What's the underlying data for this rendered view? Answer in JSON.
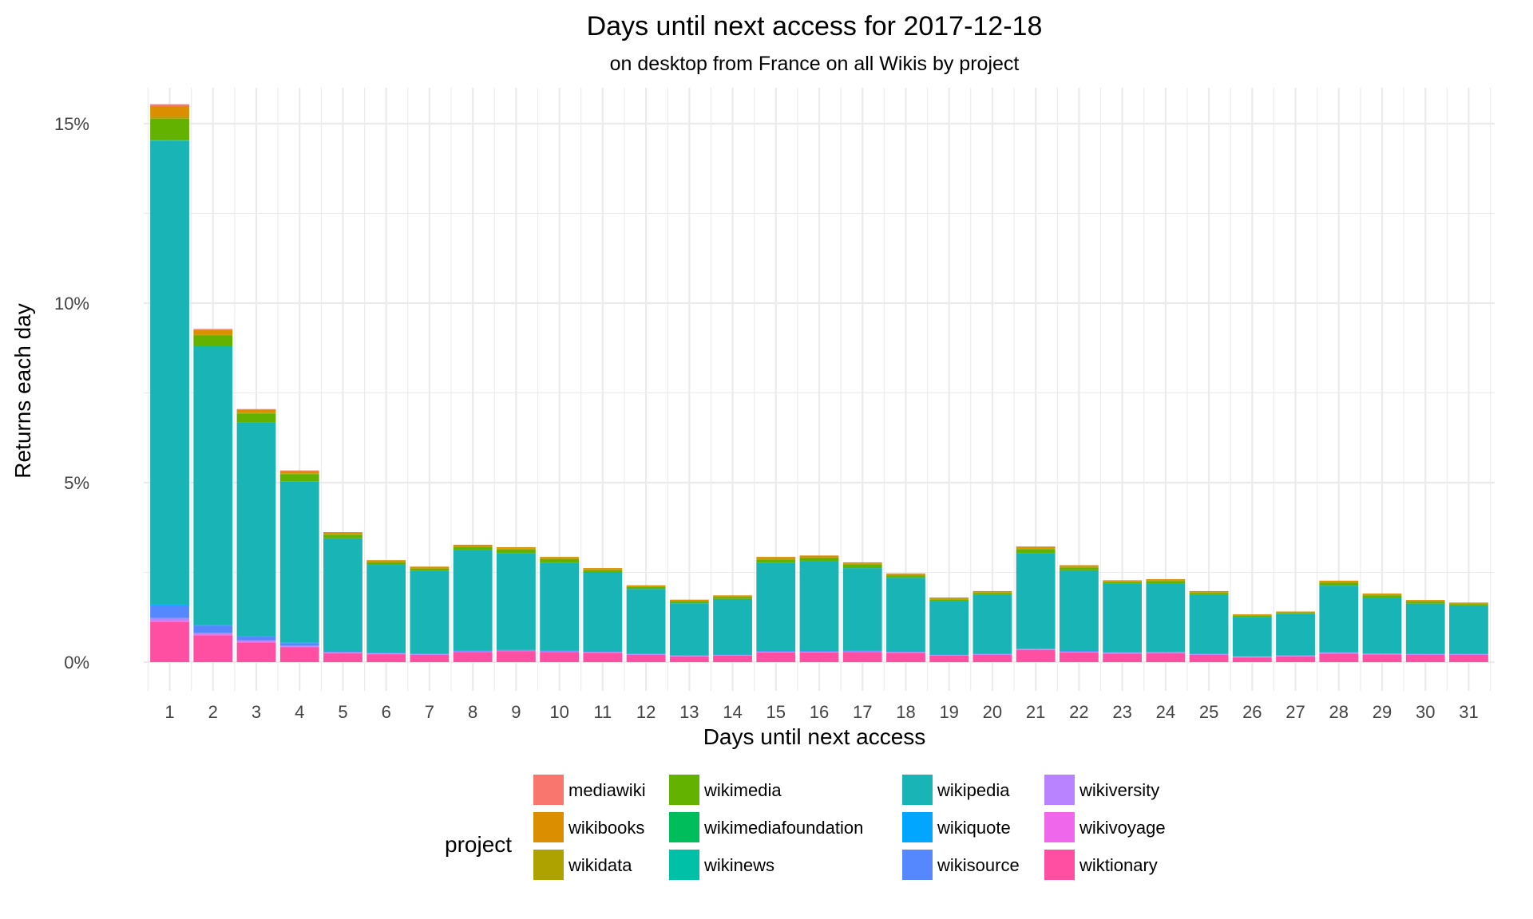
{
  "chart_data": {
    "type": "bar",
    "stacked": true,
    "title": "Days until next access for 2017-12-18",
    "subtitle": "on desktop from France on all Wikis by project",
    "xlabel": "Days until next access",
    "ylabel": "Returns each day",
    "ylim": [
      -0.8,
      16
    ],
    "yticks": [
      0,
      5,
      10,
      15
    ],
    "yticklabels": [
      "0%",
      "5%",
      "10%",
      "15%"
    ],
    "grid": true,
    "legend_position": "bottom",
    "legend_title": "project",
    "categories": [
      "1",
      "2",
      "3",
      "4",
      "5",
      "6",
      "7",
      "8",
      "9",
      "10",
      "11",
      "12",
      "13",
      "14",
      "15",
      "16",
      "17",
      "18",
      "19",
      "20",
      "21",
      "22",
      "23",
      "24",
      "25",
      "26",
      "27",
      "28",
      "29",
      "30",
      "31"
    ],
    "series": [
      {
        "name": "mediawiki",
        "color": "#F8766D",
        "values": [
          0.05,
          0.03,
          0.02,
          0.02,
          0,
          0,
          0,
          0,
          0,
          0,
          0,
          0,
          0,
          0,
          0,
          0,
          0,
          0,
          0,
          0,
          0,
          0,
          0,
          0,
          0,
          0,
          0,
          0,
          0,
          0,
          0
        ]
      },
      {
        "name": "wikibooks",
        "color": "#DB8E00",
        "values": [
          0.3,
          0.12,
          0.08,
          0.06,
          0.05,
          0.04,
          0.04,
          0.05,
          0.04,
          0.04,
          0.04,
          0.03,
          0.03,
          0.03,
          0.05,
          0.05,
          0.04,
          0.04,
          0.03,
          0.03,
          0.05,
          0.04,
          0.03,
          0.03,
          0.03,
          0.02,
          0.02,
          0.04,
          0.03,
          0.03,
          0.02
        ]
      },
      {
        "name": "wikidata",
        "color": "#AEA200",
        "values": [
          0.05,
          0.03,
          0.02,
          0.02,
          0.02,
          0.02,
          0.02,
          0.02,
          0.02,
          0.02,
          0.02,
          0.02,
          0.02,
          0.02,
          0.02,
          0.02,
          0.02,
          0.02,
          0.02,
          0.02,
          0.02,
          0.02,
          0.02,
          0.02,
          0.02,
          0.02,
          0.02,
          0.02,
          0.02,
          0.02,
          0.02
        ]
      },
      {
        "name": "wikimedia",
        "color": "#64B200",
        "values": [
          0.6,
          0.3,
          0.25,
          0.2,
          0.1,
          0.07,
          0.06,
          0.08,
          0.1,
          0.1,
          0.06,
          0.05,
          0.05,
          0.05,
          0.1,
          0.09,
          0.1,
          0.06,
          0.04,
          0.05,
          0.12,
          0.08,
          0.05,
          0.07,
          0.05,
          0.03,
          0.03,
          0.08,
          0.07,
          0.05,
          0.04
        ]
      },
      {
        "name": "wikimediafoundation",
        "color": "#00BD5C",
        "values": [
          0.01,
          0.01,
          0,
          0,
          0,
          0,
          0,
          0,
          0,
          0,
          0,
          0,
          0,
          0,
          0,
          0,
          0,
          0,
          0,
          0,
          0,
          0,
          0,
          0,
          0,
          0,
          0,
          0,
          0,
          0,
          0
        ]
      },
      {
        "name": "wikinews",
        "color": "#00C1A7",
        "values": [
          0.01,
          0,
          0,
          0,
          0,
          0,
          0,
          0,
          0,
          0,
          0,
          0,
          0,
          0,
          0,
          0,
          0,
          0,
          0,
          0,
          0,
          0,
          0,
          0,
          0,
          0,
          0,
          0,
          0,
          0,
          0
        ]
      },
      {
        "name": "wikipedia",
        "color": "#19B4B6",
        "values": [
          12.9,
          7.75,
          5.95,
          4.5,
          3.15,
          2.45,
          2.3,
          2.8,
          2.7,
          2.45,
          2.2,
          1.8,
          1.45,
          1.55,
          2.45,
          2.5,
          2.3,
          2.05,
          1.5,
          1.65,
          2.65,
          2.25,
          1.9,
          1.9,
          1.65,
          1.1,
          1.15,
          1.85,
          1.55,
          1.4,
          1.35
        ]
      },
      {
        "name": "wikiquote",
        "color": "#00A6FF",
        "values": [
          0.04,
          0.02,
          0.02,
          0.01,
          0,
          0,
          0,
          0,
          0,
          0,
          0,
          0,
          0,
          0,
          0,
          0,
          0,
          0,
          0,
          0,
          0,
          0,
          0,
          0,
          0,
          0,
          0,
          0,
          0,
          0,
          0
        ]
      },
      {
        "name": "wikisource",
        "color": "#5588FF",
        "values": [
          0.35,
          0.2,
          0.1,
          0.07,
          0.03,
          0.02,
          0.02,
          0.02,
          0.02,
          0.02,
          0.02,
          0.02,
          0.01,
          0.01,
          0.02,
          0.02,
          0.02,
          0.02,
          0.01,
          0.01,
          0.02,
          0.02,
          0.02,
          0.02,
          0.01,
          0.01,
          0.01,
          0.02,
          0.01,
          0.01,
          0.01
        ]
      },
      {
        "name": "wikiversity",
        "color": "#B983FF",
        "values": [
          0.08,
          0.05,
          0.04,
          0.03,
          0.01,
          0.01,
          0.01,
          0.01,
          0.01,
          0.01,
          0.01,
          0.01,
          0.01,
          0.01,
          0.01,
          0.01,
          0.01,
          0.01,
          0.01,
          0.01,
          0.01,
          0.01,
          0.01,
          0.01,
          0.01,
          0.01,
          0.01,
          0.01,
          0.01,
          0.01,
          0.01
        ]
      },
      {
        "name": "wikivoyage",
        "color": "#EF67EB",
        "values": [
          0.03,
          0.02,
          0.02,
          0.01,
          0.01,
          0.01,
          0.01,
          0.01,
          0.01,
          0.01,
          0.01,
          0.01,
          0.01,
          0.01,
          0.01,
          0.01,
          0.01,
          0.01,
          0.01,
          0.01,
          0.01,
          0.01,
          0.01,
          0.01,
          0.01,
          0.01,
          0.01,
          0.01,
          0.01,
          0.01,
          0.01
        ]
      },
      {
        "name": "wiktionary",
        "color": "#FF4FA3",
        "values": [
          1.12,
          0.75,
          0.55,
          0.42,
          0.25,
          0.22,
          0.2,
          0.28,
          0.3,
          0.28,
          0.26,
          0.2,
          0.16,
          0.18,
          0.27,
          0.27,
          0.28,
          0.26,
          0.18,
          0.2,
          0.34,
          0.27,
          0.24,
          0.25,
          0.2,
          0.13,
          0.16,
          0.24,
          0.21,
          0.2,
          0.2
        ]
      }
    ]
  }
}
